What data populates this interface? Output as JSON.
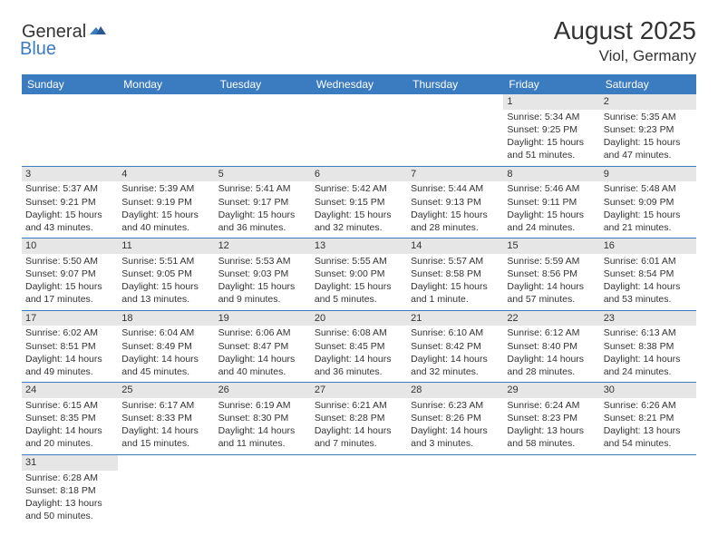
{
  "brand": {
    "text_general": "General",
    "text_blue": "Blue",
    "accent_color": "#3b7bbf"
  },
  "header": {
    "title": "August 2025",
    "location": "Viol, Germany"
  },
  "weekdays": [
    "Sunday",
    "Monday",
    "Tuesday",
    "Wednesday",
    "Thursday",
    "Friday",
    "Saturday"
  ],
  "colors": {
    "header_bg": "#3b7bbf",
    "header_text": "#ffffff",
    "daynum_bg": "#e6e6e6",
    "text": "#333333",
    "row_divider": "#3b7bbf"
  },
  "days": [
    {
      "num": "1",
      "sunrise": "Sunrise: 5:34 AM",
      "sunset": "Sunset: 9:25 PM",
      "daylight1": "Daylight: 15 hours",
      "daylight2": "and 51 minutes."
    },
    {
      "num": "2",
      "sunrise": "Sunrise: 5:35 AM",
      "sunset": "Sunset: 9:23 PM",
      "daylight1": "Daylight: 15 hours",
      "daylight2": "and 47 minutes."
    },
    {
      "num": "3",
      "sunrise": "Sunrise: 5:37 AM",
      "sunset": "Sunset: 9:21 PM",
      "daylight1": "Daylight: 15 hours",
      "daylight2": "and 43 minutes."
    },
    {
      "num": "4",
      "sunrise": "Sunrise: 5:39 AM",
      "sunset": "Sunset: 9:19 PM",
      "daylight1": "Daylight: 15 hours",
      "daylight2": "and 40 minutes."
    },
    {
      "num": "5",
      "sunrise": "Sunrise: 5:41 AM",
      "sunset": "Sunset: 9:17 PM",
      "daylight1": "Daylight: 15 hours",
      "daylight2": "and 36 minutes."
    },
    {
      "num": "6",
      "sunrise": "Sunrise: 5:42 AM",
      "sunset": "Sunset: 9:15 PM",
      "daylight1": "Daylight: 15 hours",
      "daylight2": "and 32 minutes."
    },
    {
      "num": "7",
      "sunrise": "Sunrise: 5:44 AM",
      "sunset": "Sunset: 9:13 PM",
      "daylight1": "Daylight: 15 hours",
      "daylight2": "and 28 minutes."
    },
    {
      "num": "8",
      "sunrise": "Sunrise: 5:46 AM",
      "sunset": "Sunset: 9:11 PM",
      "daylight1": "Daylight: 15 hours",
      "daylight2": "and 24 minutes."
    },
    {
      "num": "9",
      "sunrise": "Sunrise: 5:48 AM",
      "sunset": "Sunset: 9:09 PM",
      "daylight1": "Daylight: 15 hours",
      "daylight2": "and 21 minutes."
    },
    {
      "num": "10",
      "sunrise": "Sunrise: 5:50 AM",
      "sunset": "Sunset: 9:07 PM",
      "daylight1": "Daylight: 15 hours",
      "daylight2": "and 17 minutes."
    },
    {
      "num": "11",
      "sunrise": "Sunrise: 5:51 AM",
      "sunset": "Sunset: 9:05 PM",
      "daylight1": "Daylight: 15 hours",
      "daylight2": "and 13 minutes."
    },
    {
      "num": "12",
      "sunrise": "Sunrise: 5:53 AM",
      "sunset": "Sunset: 9:03 PM",
      "daylight1": "Daylight: 15 hours",
      "daylight2": "and 9 minutes."
    },
    {
      "num": "13",
      "sunrise": "Sunrise: 5:55 AM",
      "sunset": "Sunset: 9:00 PM",
      "daylight1": "Daylight: 15 hours",
      "daylight2": "and 5 minutes."
    },
    {
      "num": "14",
      "sunrise": "Sunrise: 5:57 AM",
      "sunset": "Sunset: 8:58 PM",
      "daylight1": "Daylight: 15 hours",
      "daylight2": "and 1 minute."
    },
    {
      "num": "15",
      "sunrise": "Sunrise: 5:59 AM",
      "sunset": "Sunset: 8:56 PM",
      "daylight1": "Daylight: 14 hours",
      "daylight2": "and 57 minutes."
    },
    {
      "num": "16",
      "sunrise": "Sunrise: 6:01 AM",
      "sunset": "Sunset: 8:54 PM",
      "daylight1": "Daylight: 14 hours",
      "daylight2": "and 53 minutes."
    },
    {
      "num": "17",
      "sunrise": "Sunrise: 6:02 AM",
      "sunset": "Sunset: 8:51 PM",
      "daylight1": "Daylight: 14 hours",
      "daylight2": "and 49 minutes."
    },
    {
      "num": "18",
      "sunrise": "Sunrise: 6:04 AM",
      "sunset": "Sunset: 8:49 PM",
      "daylight1": "Daylight: 14 hours",
      "daylight2": "and 45 minutes."
    },
    {
      "num": "19",
      "sunrise": "Sunrise: 6:06 AM",
      "sunset": "Sunset: 8:47 PM",
      "daylight1": "Daylight: 14 hours",
      "daylight2": "and 40 minutes."
    },
    {
      "num": "20",
      "sunrise": "Sunrise: 6:08 AM",
      "sunset": "Sunset: 8:45 PM",
      "daylight1": "Daylight: 14 hours",
      "daylight2": "and 36 minutes."
    },
    {
      "num": "21",
      "sunrise": "Sunrise: 6:10 AM",
      "sunset": "Sunset: 8:42 PM",
      "daylight1": "Daylight: 14 hours",
      "daylight2": "and 32 minutes."
    },
    {
      "num": "22",
      "sunrise": "Sunrise: 6:12 AM",
      "sunset": "Sunset: 8:40 PM",
      "daylight1": "Daylight: 14 hours",
      "daylight2": "and 28 minutes."
    },
    {
      "num": "23",
      "sunrise": "Sunrise: 6:13 AM",
      "sunset": "Sunset: 8:38 PM",
      "daylight1": "Daylight: 14 hours",
      "daylight2": "and 24 minutes."
    },
    {
      "num": "24",
      "sunrise": "Sunrise: 6:15 AM",
      "sunset": "Sunset: 8:35 PM",
      "daylight1": "Daylight: 14 hours",
      "daylight2": "and 20 minutes."
    },
    {
      "num": "25",
      "sunrise": "Sunrise: 6:17 AM",
      "sunset": "Sunset: 8:33 PM",
      "daylight1": "Daylight: 14 hours",
      "daylight2": "and 15 minutes."
    },
    {
      "num": "26",
      "sunrise": "Sunrise: 6:19 AM",
      "sunset": "Sunset: 8:30 PM",
      "daylight1": "Daylight: 14 hours",
      "daylight2": "and 11 minutes."
    },
    {
      "num": "27",
      "sunrise": "Sunrise: 6:21 AM",
      "sunset": "Sunset: 8:28 PM",
      "daylight1": "Daylight: 14 hours",
      "daylight2": "and 7 minutes."
    },
    {
      "num": "28",
      "sunrise": "Sunrise: 6:23 AM",
      "sunset": "Sunset: 8:26 PM",
      "daylight1": "Daylight: 14 hours",
      "daylight2": "and 3 minutes."
    },
    {
      "num": "29",
      "sunrise": "Sunrise: 6:24 AM",
      "sunset": "Sunset: 8:23 PM",
      "daylight1": "Daylight: 13 hours",
      "daylight2": "and 58 minutes."
    },
    {
      "num": "30",
      "sunrise": "Sunrise: 6:26 AM",
      "sunset": "Sunset: 8:21 PM",
      "daylight1": "Daylight: 13 hours",
      "daylight2": "and 54 minutes."
    },
    {
      "num": "31",
      "sunrise": "Sunrise: 6:28 AM",
      "sunset": "Sunset: 8:18 PM",
      "daylight1": "Daylight: 13 hours",
      "daylight2": "and 50 minutes."
    }
  ],
  "layout": {
    "first_weekday_index": 5,
    "total_days": 31
  }
}
